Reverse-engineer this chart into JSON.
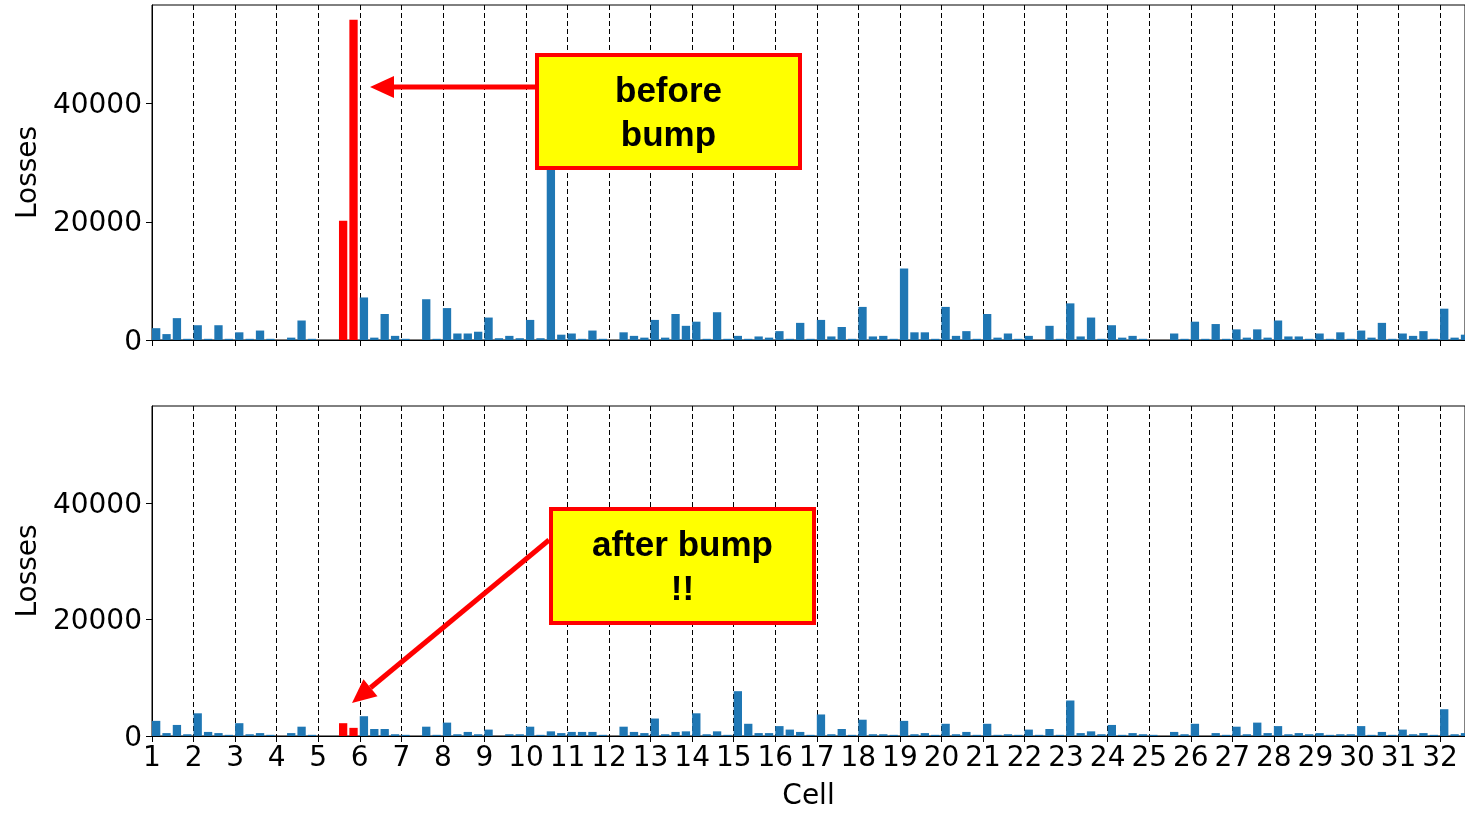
{
  "chart_data": [
    {
      "type": "bar",
      "ylabel": "Losses",
      "xlim": [
        1,
        32.6
      ],
      "ylim": [
        0,
        56700
      ],
      "xticks": [
        1,
        2,
        3,
        4,
        5,
        6,
        7,
        8,
        9,
        10,
        11,
        12,
        13,
        14,
        15,
        16,
        17,
        18,
        19,
        20,
        21,
        22,
        23,
        24,
        25,
        26,
        27,
        28,
        29,
        30,
        31,
        32
      ],
      "yticks": [
        0,
        20000,
        40000
      ],
      "grid": "x",
      "tick_labels": "y",
      "annotations": [
        "before bump"
      ],
      "series": [
        {
          "color": "#1f77b4",
          "x": [
            1.1,
            1.35,
            1.6,
            1.85,
            2.1,
            2.35,
            2.6,
            2.85,
            3.1,
            3.35,
            3.6,
            3.85,
            4.1,
            4.35,
            4.6,
            4.85,
            5.1,
            5.35,
            6.1,
            6.35,
            6.6,
            6.85,
            7.1,
            7.35,
            7.6,
            7.85,
            8.1,
            8.35,
            8.6,
            8.85,
            9.1,
            9.35,
            9.6,
            9.85,
            10.1,
            10.35,
            10.6,
            10.85,
            11.1,
            11.35,
            11.6,
            11.85,
            12.1,
            12.35,
            12.6,
            12.85,
            13.1,
            13.35,
            13.6,
            13.85,
            14.1,
            14.35,
            14.6,
            14.85,
            15.1,
            15.35,
            15.6,
            15.85,
            16.1,
            16.35,
            16.6,
            16.85,
            17.1,
            17.35,
            17.6,
            17.85,
            18.1,
            18.35,
            18.6,
            18.85,
            19.1,
            19.35,
            19.6,
            19.85,
            20.1,
            20.35,
            20.6,
            20.85,
            21.1,
            21.35,
            21.6,
            21.85,
            22.1,
            22.35,
            22.6,
            22.85,
            23.1,
            23.35,
            23.6,
            23.85,
            24.1,
            24.35,
            24.6,
            24.85,
            25.1,
            25.35,
            25.6,
            25.85,
            26.1,
            26.35,
            26.6,
            26.85,
            27.1,
            27.35,
            27.6,
            27.85,
            28.1,
            28.35,
            28.6,
            28.85,
            29.1,
            29.35,
            29.6,
            29.85,
            30.1,
            30.35,
            30.6,
            30.85,
            31.1,
            31.35,
            31.6,
            31.85,
            32.1,
            32.35,
            32.6
          ],
          "values": [
            2000,
            1000,
            3700,
            200,
            2500,
            200,
            2500,
            200,
            1300,
            200,
            1600,
            200,
            0,
            400,
            3300,
            200,
            0,
            0,
            7200,
            400,
            4400,
            700,
            200,
            0,
            6900,
            200,
            5400,
            1100,
            1100,
            1400,
            3800,
            300,
            700,
            300,
            3400,
            300,
            28800,
            900,
            1100,
            200,
            1600,
            200,
            0,
            1300,
            700,
            400,
            3400,
            400,
            4400,
            2400,
            3100,
            200,
            4700,
            200,
            700,
            200,
            600,
            400,
            1500,
            200,
            2900,
            200,
            3400,
            600,
            2200,
            200,
            5600,
            600,
            700,
            200,
            12100,
            1300,
            1300,
            200,
            5600,
            700,
            1500,
            200,
            4400,
            400,
            1100,
            200,
            700,
            0,
            2400,
            200,
            6200,
            600,
            3800,
            200,
            2500,
            400,
            700,
            200,
            0,
            0,
            1100,
            200,
            3100,
            200,
            2700,
            200,
            1800,
            400,
            1800,
            400,
            3300,
            600,
            600,
            200,
            1100,
            200,
            1300,
            200,
            1600,
            400,
            2900,
            200,
            1100,
            700,
            1500,
            200,
            5300,
            400,
            900
          ]
        },
        {
          "color": "#ff0000",
          "x": [
            5.6,
            5.85
          ],
          "values": [
            20200,
            54200
          ]
        }
      ]
    },
    {
      "type": "bar",
      "xlabel": "Cell",
      "ylabel": "Losses",
      "xlim": [
        1,
        32.6
      ],
      "ylim": [
        0,
        56700
      ],
      "xticks": [
        1,
        2,
        3,
        4,
        5,
        6,
        7,
        8,
        9,
        10,
        11,
        12,
        13,
        14,
        15,
        16,
        17,
        18,
        19,
        20,
        21,
        22,
        23,
        24,
        25,
        26,
        27,
        28,
        29,
        30,
        31,
        32
      ],
      "yticks": [
        0,
        20000,
        40000
      ],
      "grid": "x",
      "annotations": [
        "after bump !!"
      ],
      "series": [
        {
          "color": "#1f77b4",
          "x": [
            1.1,
            1.35,
            1.6,
            1.85,
            2.1,
            2.35,
            2.6,
            2.85,
            3.1,
            3.35,
            3.6,
            3.85,
            4.1,
            4.35,
            4.6,
            4.85,
            5.1,
            5.35,
            6.1,
            6.35,
            6.6,
            6.85,
            7.1,
            7.35,
            7.6,
            7.85,
            8.1,
            8.35,
            8.6,
            8.85,
            9.1,
            9.35,
            9.6,
            9.85,
            10.1,
            10.35,
            10.6,
            10.85,
            11.1,
            11.35,
            11.6,
            11.85,
            12.1,
            12.35,
            12.6,
            12.85,
            13.1,
            13.35,
            13.6,
            13.85,
            14.1,
            14.35,
            14.6,
            14.85,
            15.1,
            15.35,
            15.6,
            15.85,
            16.1,
            16.35,
            16.6,
            16.85,
            17.1,
            17.35,
            17.6,
            17.85,
            18.1,
            18.35,
            18.6,
            18.85,
            19.1,
            19.35,
            19.6,
            19.85,
            20.1,
            20.35,
            20.6,
            20.85,
            21.1,
            21.35,
            21.6,
            21.85,
            22.1,
            22.35,
            22.6,
            22.85,
            23.1,
            23.35,
            23.6,
            23.85,
            24.1,
            24.35,
            24.6,
            24.85,
            25.1,
            25.35,
            25.6,
            25.85,
            26.1,
            26.35,
            26.6,
            26.85,
            27.1,
            27.35,
            27.6,
            27.85,
            28.1,
            28.35,
            28.6,
            28.85,
            29.1,
            29.35,
            29.6,
            29.85,
            30.1,
            30.35,
            30.6,
            30.85,
            31.1,
            31.35,
            31.6,
            31.85,
            32.1,
            32.35,
            32.6
          ],
          "values": [
            2600,
            500,
            1900,
            300,
            3900,
            700,
            500,
            200,
            2200,
            300,
            500,
            200,
            0,
            500,
            1600,
            200,
            0,
            0,
            3400,
            1200,
            1200,
            300,
            200,
            0,
            1600,
            200,
            2300,
            300,
            700,
            300,
            1100,
            0,
            300,
            300,
            1600,
            200,
            800,
            500,
            700,
            700,
            700,
            200,
            0,
            1600,
            700,
            500,
            3000,
            300,
            700,
            800,
            3900,
            300,
            800,
            200,
            7700,
            2100,
            500,
            500,
            1700,
            1100,
            700,
            200,
            3700,
            300,
            1200,
            200,
            2800,
            300,
            300,
            200,
            2600,
            300,
            500,
            200,
            2100,
            300,
            700,
            200,
            2100,
            200,
            300,
            200,
            1100,
            200,
            1200,
            200,
            6100,
            500,
            800,
            300,
            1900,
            200,
            500,
            300,
            200,
            0,
            700,
            300,
            2100,
            0,
            500,
            200,
            1600,
            300,
            2300,
            500,
            1700,
            300,
            500,
            300,
            500,
            200,
            300,
            300,
            1700,
            200,
            700,
            200,
            1100,
            300,
            500,
            200,
            4600,
            300,
            500
          ]
        },
        {
          "color": "#ff0000",
          "x": [
            5.6,
            5.85
          ],
          "values": [
            2200,
            1400
          ]
        }
      ]
    }
  ]
}
